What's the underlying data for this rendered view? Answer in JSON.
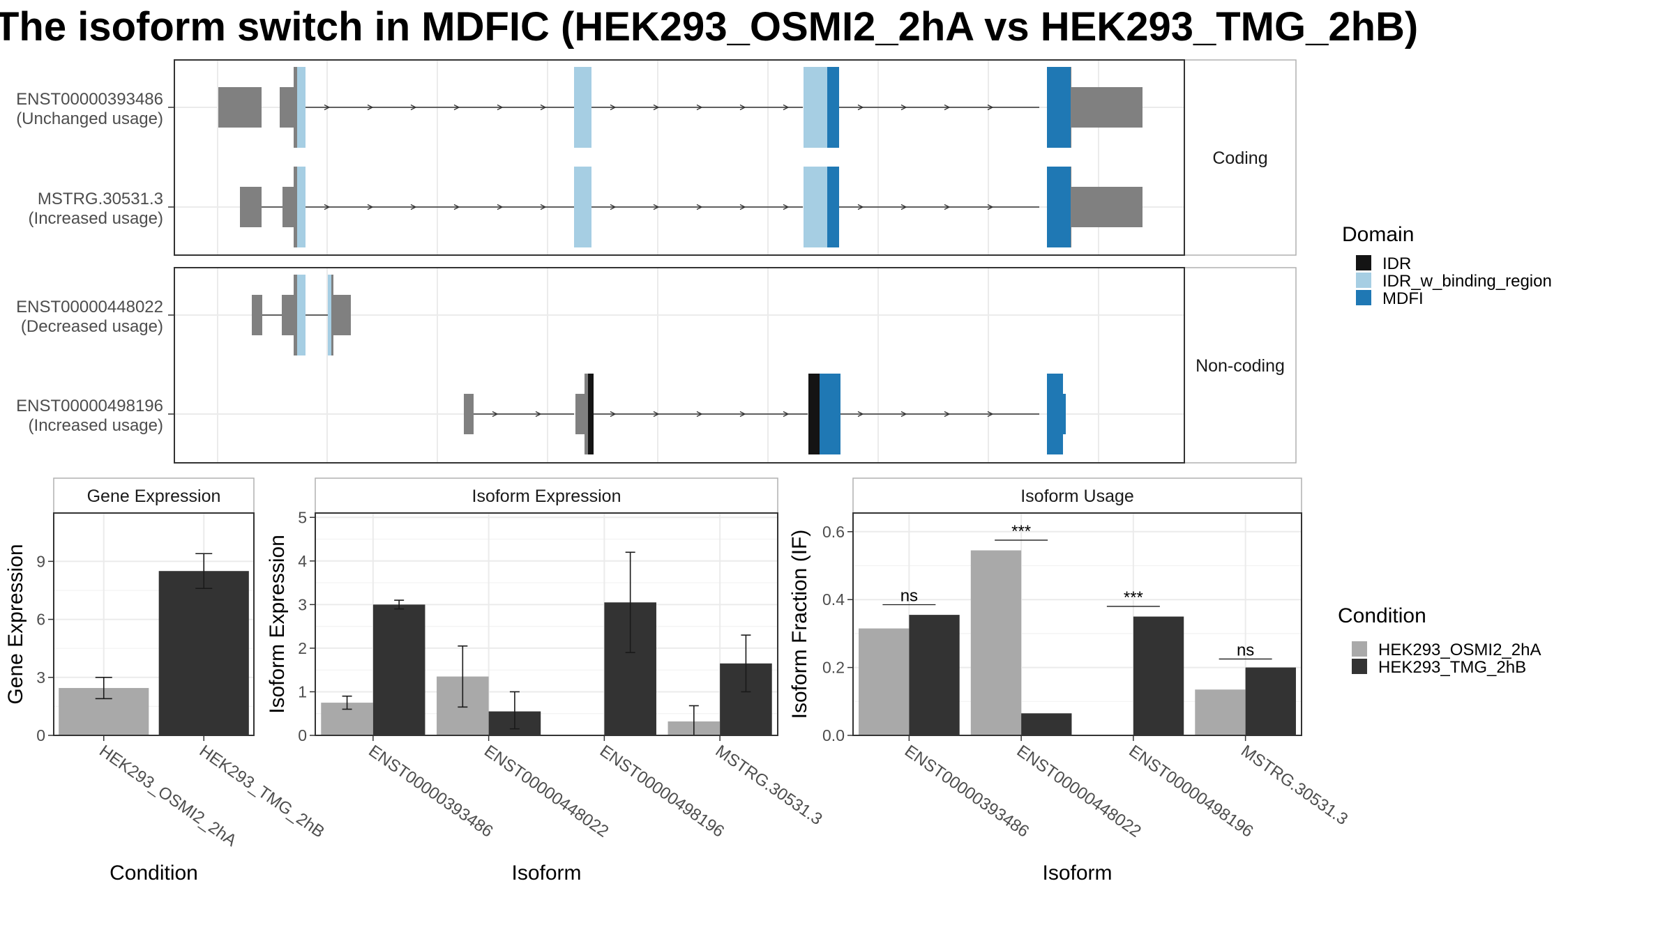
{
  "title": "The isoform switch in MDFIC (HEK293_OSMI2_2hA vs HEK293_TMG_2hB)",
  "colors": {
    "IDR": "#141414",
    "IDR_w_binding_region": "#a6cee3",
    "MDFI": "#1f78b4",
    "utr": "#808080",
    "HEK293_OSMI2_2hA": "#a9a9a9",
    "HEK293_TMG_2hB": "#333333"
  },
  "structure": {
    "facets": [
      "Coding",
      "Non-coding"
    ],
    "isoforms": [
      {
        "line1": "ENST00000393486",
        "line2": "(Unchanged usage)"
      },
      {
        "line1": "MSTRG.30531.3",
        "line2": "(Increased usage)"
      },
      {
        "line1": "ENST00000448022",
        "line2": "(Decreased usage)"
      },
      {
        "line1": "ENST00000498196",
        "line2": "(Increased usage)"
      }
    ]
  },
  "legend_domain": {
    "title": "Domain",
    "items": [
      "IDR",
      "IDR_w_binding_region",
      "MDFI"
    ]
  },
  "legend_condition": {
    "title": "Condition",
    "items": [
      "HEK293_OSMI2_2hA",
      "HEK293_TMG_2hB"
    ]
  },
  "chart_data": [
    {
      "type": "bar",
      "title": "Gene Expression",
      "xlabel": "Condition",
      "ylabel": "Gene Expression",
      "categories": [
        "HEK293_OSMI2_2hA",
        "HEK293_TMG_2hB"
      ],
      "values": [
        2.45,
        8.5
      ],
      "errors": [
        [
          1.9,
          3.0
        ],
        [
          7.6,
          9.4
        ]
      ],
      "yticks": [
        0,
        3,
        6,
        9
      ],
      "ylim": [
        0,
        11.5
      ]
    },
    {
      "type": "bar",
      "title": "Isoform Expression",
      "xlabel": "Isoform",
      "ylabel": "Isoform Expression",
      "categories": [
        "ENST00000393486",
        "ENST00000448022",
        "ENST00000498196",
        "MSTRG.30531.3"
      ],
      "series": [
        {
          "name": "HEK293_OSMI2_2hA",
          "values": [
            0.75,
            1.35,
            0.0,
            0.32
          ],
          "errors": [
            [
              0.6,
              0.9
            ],
            [
              0.65,
              2.05
            ],
            [
              0.0,
              0.0
            ],
            [
              0.0,
              0.68
            ]
          ]
        },
        {
          "name": "HEK293_TMG_2hB",
          "values": [
            3.0,
            0.55,
            3.05,
            1.65
          ],
          "errors": [
            [
              2.9,
              3.1
            ],
            [
              0.15,
              1.0
            ],
            [
              1.9,
              4.2
            ],
            [
              1.0,
              2.3
            ]
          ]
        }
      ],
      "yticks": [
        0,
        1,
        2,
        3,
        4,
        5
      ],
      "ylim": [
        0,
        5.1
      ]
    },
    {
      "type": "bar",
      "title": "Isoform Usage",
      "xlabel": "Isoform",
      "ylabel": "Isoform Fraction (IF)",
      "categories": [
        "ENST00000393486",
        "ENST00000448022",
        "ENST00000498196",
        "MSTRG.30531.3"
      ],
      "series": [
        {
          "name": "HEK293_OSMI2_2hA",
          "values": [
            0.315,
            0.545,
            0.0,
            0.135
          ]
        },
        {
          "name": "HEK293_TMG_2hB",
          "values": [
            0.355,
            0.065,
            0.35,
            0.2
          ]
        }
      ],
      "significance": [
        {
          "label": "ns",
          "y": 0.385
        },
        {
          "label": "***",
          "y": 0.575
        },
        {
          "label": "***",
          "y": 0.38
        },
        {
          "label": "ns",
          "y": 0.225
        }
      ],
      "yticks": [
        0.0,
        0.2,
        0.4,
        0.6
      ],
      "ytick_labels": [
        "0.0",
        "0.2",
        "0.4",
        "0.6"
      ],
      "ylim": [
        0,
        0.655
      ]
    }
  ]
}
